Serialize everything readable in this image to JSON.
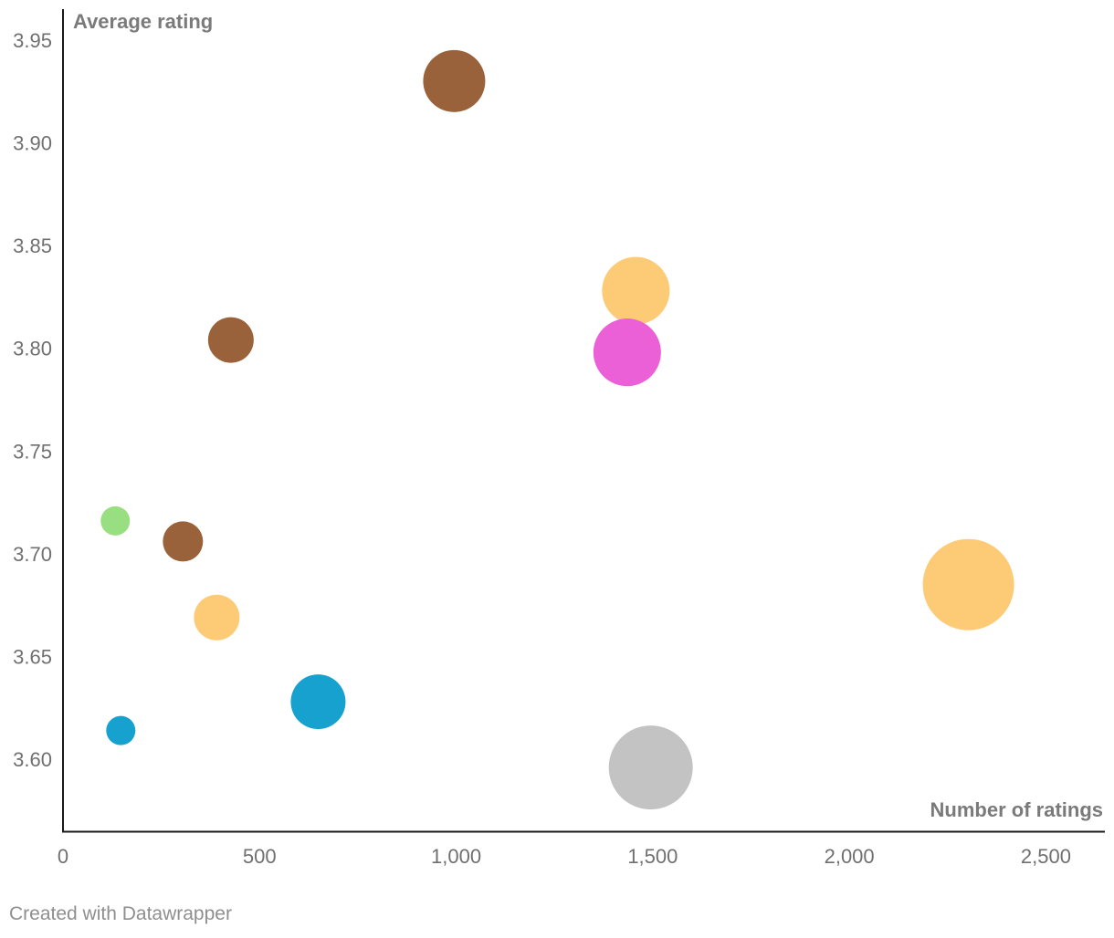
{
  "chart_data": {
    "type": "scatter",
    "title": "",
    "xlabel": "Number of ratings",
    "ylabel": "Average rating",
    "xlim": [
      0,
      2650
    ],
    "ylim": [
      3.565,
      3.965
    ],
    "x_ticks": [
      0,
      500,
      1000,
      1500,
      2000,
      2500
    ],
    "x_tick_labels": [
      "0",
      "500",
      "1,000",
      "1,500",
      "2,000",
      "2,500"
    ],
    "y_ticks": [
      3.6,
      3.65,
      3.7,
      3.75,
      3.8,
      3.85,
      3.9,
      3.95
    ],
    "y_tick_labels": [
      "3.60",
      "3.65",
      "3.70",
      "3.75",
      "3.80",
      "3.85",
      "3.90",
      "3.95"
    ],
    "grid": false,
    "points": [
      {
        "x": 995,
        "y": 3.93,
        "size": 34,
        "color": "#9a623a"
      },
      {
        "x": 1457,
        "y": 3.828,
        "size": 37,
        "color": "#fdca76"
      },
      {
        "x": 1435,
        "y": 3.798,
        "size": 37,
        "color": "#eb5fd7"
      },
      {
        "x": 427,
        "y": 3.804,
        "size": 25,
        "color": "#9a623a"
      },
      {
        "x": 133,
        "y": 3.716,
        "size": 16,
        "color": "#98df82"
      },
      {
        "x": 305,
        "y": 3.706,
        "size": 22,
        "color": "#9a623a"
      },
      {
        "x": 391,
        "y": 3.669,
        "size": 25,
        "color": "#fdca76"
      },
      {
        "x": 2303,
        "y": 3.685,
        "size": 50,
        "color": "#fdca76"
      },
      {
        "x": 649,
        "y": 3.628,
        "size": 30,
        "color": "#17a1cf"
      },
      {
        "x": 147,
        "y": 3.614,
        "size": 16,
        "color": "#17a1cf"
      },
      {
        "x": 1495,
        "y": 3.596,
        "size": 46,
        "color": "#c3c3c3"
      }
    ]
  },
  "footer": {
    "credit": "Created with Datawrapper"
  }
}
